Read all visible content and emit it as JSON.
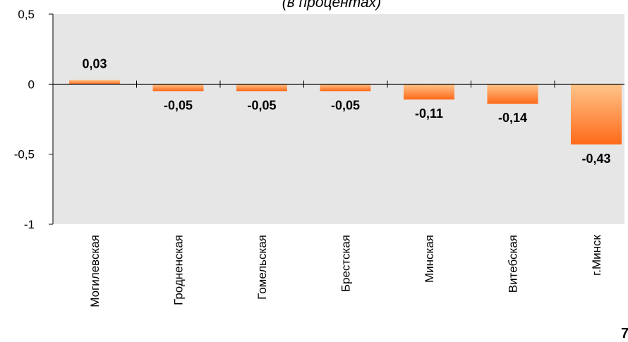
{
  "subtitle": "(в процентах)",
  "corner_mark": "7",
  "chart_data": {
    "type": "bar",
    "title": "",
    "subtitle": "(в процентах)",
    "categories": [
      "Могилевская",
      "Гродненская",
      "Гомельская",
      "Брестская",
      "Минская",
      "Витебская",
      "г.Минск"
    ],
    "values": [
      0.03,
      -0.05,
      -0.05,
      -0.05,
      -0.11,
      -0.14,
      -0.43
    ],
    "value_labels": [
      "0,03",
      "-0,05",
      "-0,05",
      "-0,05",
      "-0,11",
      "-0,14",
      "-0,43"
    ],
    "yticks": [
      0.5,
      0,
      -0.5,
      -1
    ],
    "ytick_labels": [
      "0,5",
      "0",
      "-0,5",
      "-1"
    ],
    "ylim": [
      -1,
      0.5
    ],
    "xlabel": "",
    "ylabel": "",
    "grid": false,
    "colors": {
      "plot_bg": "#e6e6e6",
      "bar_top": "#ffc48a",
      "bar_bottom": "#ff6a1a",
      "axis": "#000000"
    }
  }
}
